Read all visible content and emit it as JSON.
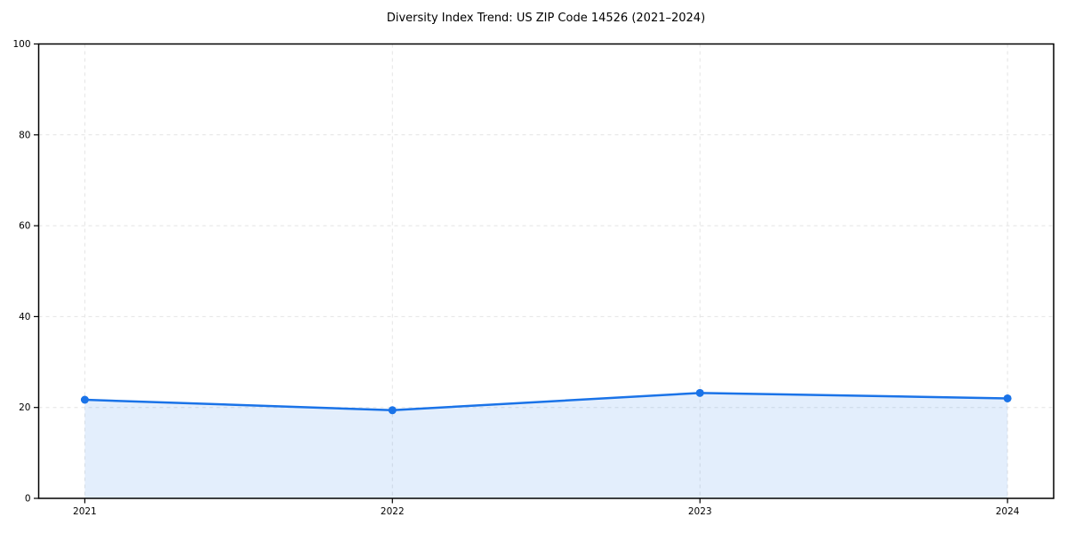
{
  "chart_data": {
    "type": "line",
    "title": "Diversity Index Trend: US ZIP Code 14526 (2021–2024)",
    "xlabel": "",
    "ylabel": "",
    "x": [
      2021,
      2022,
      2023,
      2024
    ],
    "x_tick_labels": [
      "2021",
      "2022",
      "2023",
      "2024"
    ],
    "series": [
      {
        "name": "Diversity Index",
        "values": [
          21.7,
          19.4,
          23.2,
          22.0
        ]
      }
    ],
    "ylim": [
      0,
      100
    ],
    "xlim": [
      2020.85,
      2024.15
    ],
    "yticks": [
      0,
      20,
      40,
      60,
      80,
      100
    ],
    "grid": true,
    "grid_style": "dashed",
    "legend": "none",
    "area_fill": true,
    "marker": "circle",
    "colors": {
      "line": "#1a73e8",
      "marker": "#1a73e8",
      "fill": "rgba(26,115,232,0.12)",
      "grid": "#e4e4e4",
      "spine": "#000000",
      "text": "#000000",
      "background": "#ffffff"
    }
  }
}
